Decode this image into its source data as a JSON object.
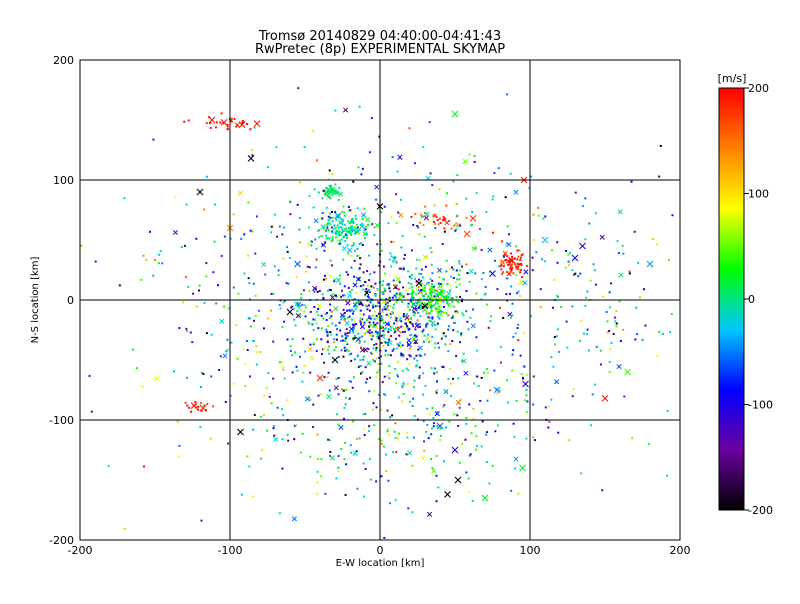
{
  "chart_data": {
    "type": "scatter",
    "title": "Tromsø 20140829 04:40:00-04:41:43",
    "subtitle": "RwPretec (8p) EXPERIMENTAL SKYMAP",
    "xlabel": "E-W location [km]",
    "ylabel": "N-S location [km]",
    "xlim": [
      -200,
      200
    ],
    "ylim": [
      -200,
      200
    ],
    "x_ticks": [
      "-200",
      "-100",
      "0",
      "100",
      "200"
    ],
    "y_ticks": [
      "-200",
      "-100",
      "0",
      "100",
      "200"
    ],
    "grid": true,
    "colorbar": {
      "label": "[m/s]",
      "range": [
        -200,
        200
      ],
      "ticks": [
        "200",
        "100",
        "0",
        "-100",
        "-200"
      ],
      "stops": [
        "#000000",
        "#6a00a0",
        "#0000ff",
        "#00c8ff",
        "#00ff00",
        "#ffff00",
        "#ff8000",
        "#ff0000"
      ]
    },
    "marker_types": [
      "dot",
      "x"
    ],
    "clusters": [
      {
        "name": "central",
        "x": 0,
        "y": -15,
        "sx": 28,
        "sy": 22,
        "n": 520,
        "v": -60,
        "sv": 70
      },
      {
        "name": "east-green",
        "x": 35,
        "y": 0,
        "sx": 10,
        "sy": 8,
        "n": 160,
        "v": 30,
        "sv": 25
      },
      {
        "name": "nw-cluster",
        "x": -25,
        "y": 60,
        "sx": 9,
        "sy": 7,
        "n": 150,
        "v": -5,
        "sv": 25
      },
      {
        "name": "nw-upper",
        "x": -35,
        "y": 90,
        "sx": 4,
        "sy": 3,
        "n": 50,
        "v": 5,
        "sv": 10
      },
      {
        "name": "east-red",
        "x": 88,
        "y": 30,
        "sx": 5,
        "sy": 6,
        "n": 60,
        "v": 185,
        "sv": 15
      },
      {
        "name": "ne-orange",
        "x": 40,
        "y": 68,
        "sx": 10,
        "sy": 5,
        "n": 40,
        "v": 160,
        "sv": 25
      },
      {
        "name": "top-left-red",
        "x": -100,
        "y": 148,
        "sx": 12,
        "sy": 3,
        "n": 28,
        "v": 190,
        "sv": 10
      },
      {
        "name": "bottom-left-red",
        "x": -122,
        "y": -88,
        "sx": 5,
        "sy": 3,
        "n": 14,
        "v": 185,
        "sv": 15
      },
      {
        "name": "scatter-wide",
        "x": 0,
        "y": -10,
        "sx": 75,
        "sy": 65,
        "n": 850,
        "v": -20,
        "sv": 90
      },
      {
        "name": "southern",
        "x": 20,
        "y": -110,
        "sx": 40,
        "sy": 40,
        "n": 160,
        "v": -10,
        "sv": 60
      },
      {
        "name": "far-east",
        "x": 150,
        "y": 10,
        "sx": 25,
        "sy": 40,
        "n": 80,
        "v": -40,
        "sv": 80
      }
    ],
    "x_markers": [
      {
        "x": -112,
        "y": 150,
        "v": 195
      },
      {
        "x": -104,
        "y": 148,
        "v": 190
      },
      {
        "x": -92,
        "y": 146,
        "v": 185
      },
      {
        "x": -82,
        "y": 147,
        "v": 190
      },
      {
        "x": -86,
        "y": 118,
        "v": -200
      },
      {
        "x": -120,
        "y": 90,
        "v": -200
      },
      {
        "x": -124,
        "y": -88,
        "v": 195
      },
      {
        "x": -118,
        "y": -90,
        "v": 190
      },
      {
        "x": -93,
        "y": -110,
        "v": -200
      },
      {
        "x": -100,
        "y": 60,
        "v": 140
      },
      {
        "x": 88,
        "y": 33,
        "v": 200
      },
      {
        "x": 96,
        "y": 100,
        "v": 190
      },
      {
        "x": 50,
        "y": 155,
        "v": 20
      },
      {
        "x": 40,
        "y": 5,
        "v": 30
      },
      {
        "x": 0,
        "y": 78,
        "v": -200
      },
      {
        "x": 135,
        "y": 45,
        "v": -120
      },
      {
        "x": 130,
        "y": 35,
        "v": -80
      },
      {
        "x": 180,
        "y": 30,
        "v": -40
      },
      {
        "x": 165,
        "y": -60,
        "v": 40
      },
      {
        "x": 150,
        "y": -82,
        "v": 190
      },
      {
        "x": 97,
        "y": -70,
        "v": -110
      },
      {
        "x": 78,
        "y": -75,
        "v": -40
      },
      {
        "x": 70,
        "y": -165,
        "v": 20
      },
      {
        "x": 45,
        "y": -162,
        "v": -200
      },
      {
        "x": 52,
        "y": -150,
        "v": -200
      },
      {
        "x": 50,
        "y": -125,
        "v": -110
      },
      {
        "x": 40,
        "y": -105,
        "v": -60
      },
      {
        "x": 95,
        "y": -140,
        "v": 20
      },
      {
        "x": -30,
        "y": -50,
        "v": -200
      },
      {
        "x": -40,
        "y": -65,
        "v": 180
      },
      {
        "x": -55,
        "y": 30,
        "v": -60
      },
      {
        "x": -28,
        "y": 70,
        "v": -40
      },
      {
        "x": -60,
        "y": -10,
        "v": -200
      },
      {
        "x": 26,
        "y": 14,
        "v": -200
      },
      {
        "x": 30,
        "y": -5,
        "v": -200
      },
      {
        "x": 12,
        "y": -25,
        "v": 160
      },
      {
        "x": 62,
        "y": 68,
        "v": 180
      },
      {
        "x": 58,
        "y": 55,
        "v": 170
      },
      {
        "x": 75,
        "y": 22,
        "v": -100
      },
      {
        "x": 110,
        "y": 50,
        "v": -30
      }
    ]
  }
}
